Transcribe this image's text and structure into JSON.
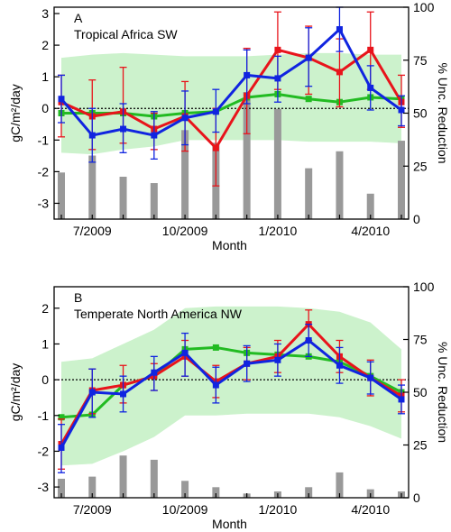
{
  "chart_data": [
    {
      "type": "line",
      "panel_letter": "A",
      "title": "Tropical Africa SW",
      "xlabel": "Month",
      "ylabel": "gC/m²/day",
      "y2label": "% Unc. Reduction",
      "xlim": [
        0,
        11
      ],
      "ylim": [
        -3.5,
        3.2
      ],
      "y2lim": [
        0,
        100
      ],
      "yticks": [
        -3,
        -2,
        -1,
        0,
        1,
        2,
        3
      ],
      "y2ticks": [
        0,
        25,
        50,
        75,
        100
      ],
      "xticks": [
        {
          "x": 1,
          "label": "7/2009"
        },
        {
          "x": 4,
          "label": "10/2009"
        },
        {
          "x": 7,
          "label": "1/2010"
        },
        {
          "x": 10,
          "label": "4/2010"
        }
      ],
      "zero_line": true,
      "grid": false,
      "colors": {
        "red": "#e8141b",
        "blue": "#1024e0",
        "green": "#22bb22",
        "band": "#ccf2cc",
        "bars": "#999999"
      },
      "x": [
        0,
        1,
        2,
        3,
        4,
        5,
        6,
        7,
        8,
        9,
        10,
        11
      ],
      "series": [
        {
          "color": "red",
          "values": [
            0.2,
            -0.25,
            -0.1,
            -0.65,
            -0.25,
            -1.25,
            0.4,
            1.85,
            1.6,
            1.15,
            1.85,
            0.2
          ],
          "err_low": [
            -0.9,
            -1.3,
            -1.1,
            -1.3,
            -1.35,
            -2.45,
            -0.8,
            0.6,
            0.45,
            0.05,
            0.6,
            -0.6
          ],
          "err_high": [
            1.05,
            0.9,
            1.3,
            -0.15,
            0.85,
            0.0,
            1.9,
            3.05,
            2.6,
            2.2,
            3.05,
            1.05
          ]
        },
        {
          "color": "blue",
          "values": [
            0.3,
            -0.85,
            -0.65,
            -0.85,
            -0.3,
            -0.1,
            1.05,
            0.95,
            1.6,
            2.5,
            0.65,
            -0.05
          ],
          "err_low": [
            -0.45,
            -1.7,
            -1.4,
            -1.6,
            -1.15,
            -0.75,
            0.15,
            0.2,
            0.7,
            1.8,
            -0.05,
            -0.55
          ],
          "err_high": [
            1.05,
            0.0,
            0.15,
            -0.1,
            0.55,
            0.6,
            1.85,
            1.65,
            2.55,
            3.2,
            1.35,
            0.4
          ]
        },
        {
          "color": "green",
          "values": [
            -0.15,
            -0.15,
            -0.15,
            -0.25,
            -0.15,
            -0.1,
            0.35,
            0.45,
            0.3,
            0.2,
            0.35,
            0.3
          ]
        }
      ],
      "band": {
        "upper": [
          1.6,
          1.7,
          1.75,
          1.7,
          1.65,
          1.65,
          1.65,
          1.7,
          1.75,
          1.75,
          1.7,
          1.7
        ],
        "lower": [
          -1.4,
          -1.45,
          -1.3,
          -1.2,
          -1.0,
          -1.0,
          -1.0,
          -1.0,
          -1.05,
          -1.05,
          -1.05,
          -1.1
        ]
      },
      "bars": [
        22,
        30,
        20,
        17,
        42,
        36,
        60,
        52,
        24,
        32,
        12,
        37
      ]
    },
    {
      "type": "line",
      "panel_letter": "B",
      "title": "Temperate North America NW",
      "xlabel": "Month",
      "ylabel": "gC/m²/day",
      "y2label": "% Unc. Reduction",
      "xlim": [
        0,
        11
      ],
      "ylim": [
        -3.3,
        2.6
      ],
      "y2lim": [
        0,
        100
      ],
      "yticks": [
        -3,
        -2,
        -1,
        0,
        1,
        2
      ],
      "y2ticks": [
        0,
        25,
        50,
        75,
        100
      ],
      "xticks": [
        {
          "x": 1,
          "label": "7/2009"
        },
        {
          "x": 4,
          "label": "10/2009"
        },
        {
          "x": 7,
          "label": "1/2010"
        },
        {
          "x": 10,
          "label": "4/2010"
        }
      ],
      "zero_line": true,
      "grid": false,
      "colors": {
        "red": "#e8141b",
        "blue": "#1024e0",
        "green": "#22bb22",
        "band": "#ccf2cc",
        "bars": "#999999"
      },
      "x": [
        0,
        1,
        2,
        3,
        4,
        5,
        6,
        7,
        8,
        9,
        10,
        11
      ],
      "series": [
        {
          "color": "red",
          "values": [
            -1.8,
            -0.3,
            -0.15,
            0.1,
            0.65,
            -0.05,
            0.45,
            0.65,
            1.55,
            0.65,
            0.05,
            -0.45
          ],
          "err_low": [
            -2.5,
            -0.95,
            -0.65,
            -0.3,
            0.1,
            -0.5,
            0.0,
            0.2,
            1.1,
            0.2,
            -0.45,
            -0.9
          ],
          "err_high": [
            -1.1,
            0.3,
            0.4,
            0.45,
            1.1,
            0.4,
            0.9,
            1.1,
            1.95,
            1.1,
            0.55,
            0.0
          ]
        },
        {
          "color": "blue",
          "values": [
            -1.9,
            -0.35,
            -0.4,
            0.2,
            0.75,
            -0.15,
            0.45,
            0.55,
            1.1,
            0.4,
            0.05,
            -0.55
          ],
          "err_low": [
            -2.6,
            -1.05,
            -0.9,
            -0.3,
            0.1,
            -0.65,
            -0.05,
            0.1,
            0.65,
            -0.1,
            -0.4,
            -0.95
          ],
          "err_high": [
            -1.25,
            0.3,
            0.1,
            0.65,
            1.3,
            0.35,
            0.95,
            1.0,
            1.55,
            0.9,
            0.5,
            -0.15
          ]
        },
        {
          "color": "green",
          "values": [
            -1.05,
            -0.98,
            -0.15,
            0.1,
            0.85,
            0.9,
            0.75,
            0.7,
            0.65,
            0.5,
            0.1,
            -0.35
          ]
        }
      ],
      "band": {
        "upper": [
          0.5,
          0.6,
          1.0,
          1.4,
          2.0,
          2.05,
          2.05,
          2.05,
          2.0,
          1.9,
          1.6,
          0.85
        ],
        "lower": [
          -2.4,
          -2.35,
          -2.0,
          -1.6,
          -1.0,
          -1.0,
          -0.95,
          -0.95,
          -0.95,
          -1.05,
          -1.3,
          -1.65
        ]
      },
      "bars": [
        9,
        10,
        20,
        18,
        8,
        5,
        2,
        3,
        5,
        12,
        4,
        3
      ]
    }
  ]
}
